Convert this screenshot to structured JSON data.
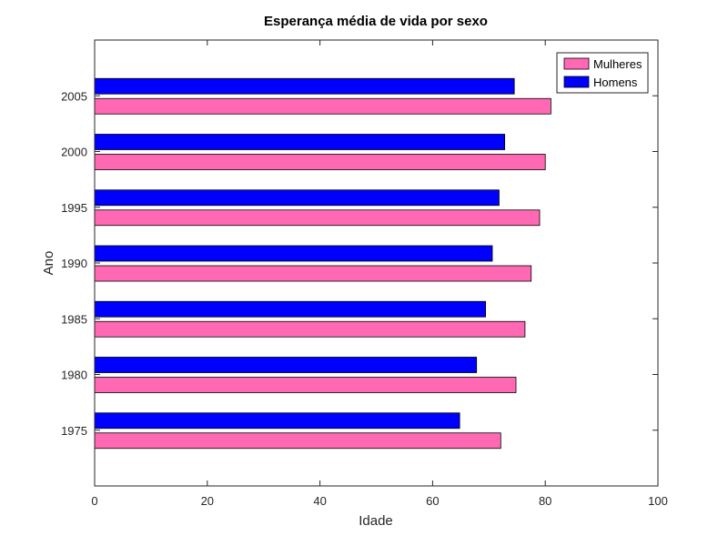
{
  "chart_data": {
    "type": "bar",
    "orientation": "horizontal",
    "title": "Esperança média de vida por sexo",
    "xlabel": "Idade",
    "ylabel": "Ano",
    "xlim": [
      0,
      100
    ],
    "x_ticks": [
      0,
      20,
      40,
      60,
      80,
      100
    ],
    "categories": [
      "1975",
      "1980",
      "1985",
      "1990",
      "1995",
      "2000",
      "2005"
    ],
    "series": [
      {
        "name": "Mulheres",
        "color": "#ff69b4",
        "values": [
          72.1,
          74.8,
          76.4,
          77.5,
          79.0,
          80.0,
          81.0
        ]
      },
      {
        "name": "Homens",
        "color": "#0000ff",
        "values": [
          64.8,
          67.8,
          69.4,
          70.6,
          71.8,
          72.8,
          74.5
        ]
      }
    ],
    "legend": {
      "position": "top-right"
    },
    "grid": false
  }
}
